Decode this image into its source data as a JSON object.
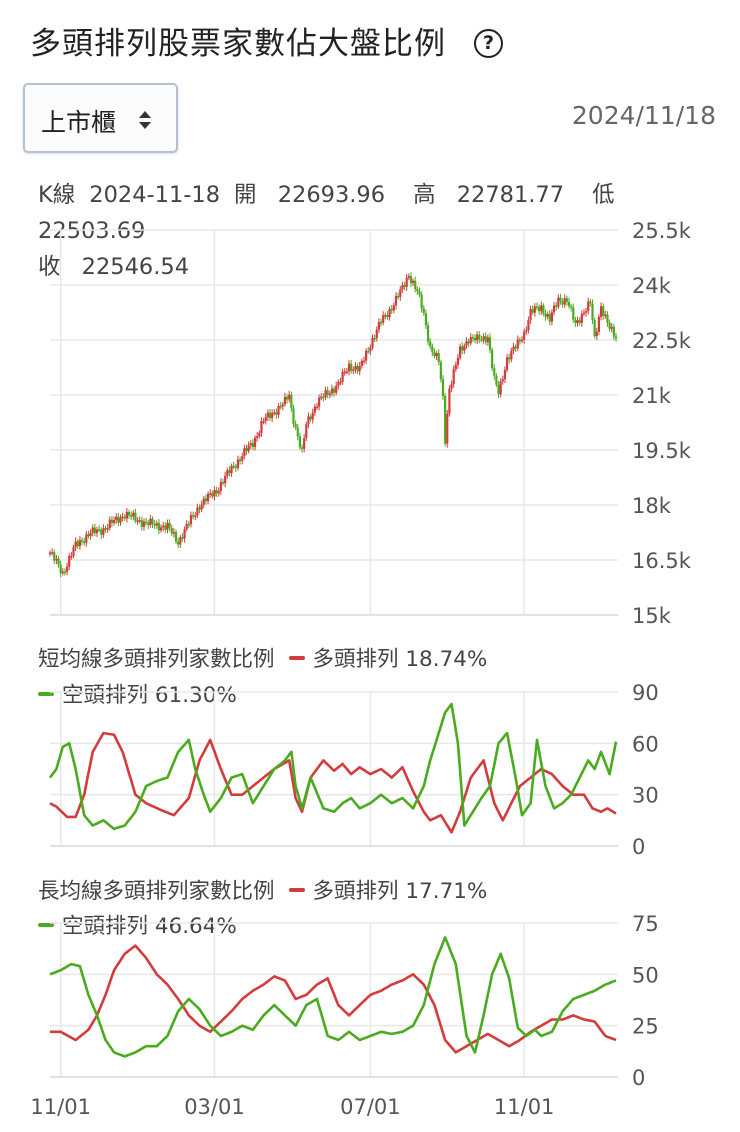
{
  "title": "多頭排列股票家數佔大盤比例",
  "help_icon": "question-circle-icon",
  "market_select": {
    "value": "上市櫃",
    "icon": "sort-arrows-icon"
  },
  "date": "2024/11/18",
  "kline_info": {
    "label": "K線",
    "date": "2024-11-18",
    "open_label": "開",
    "open": "22693.96",
    "high_label": "高",
    "high": "22781.77",
    "low_label": "低",
    "low": "22503.69",
    "close_label": "收",
    "close": "22546.54"
  },
  "colors": {
    "up": "#d43c3c",
    "down": "#4aab1f",
    "grid": "#e8e8e8"
  },
  "chart_data": [
    {
      "type": "candlestick",
      "name": "K線",
      "x_tick_labels": [
        "11/01",
        "03/01",
        "07/01",
        "11/01"
      ],
      "x_tick_positions": [
        5,
        77,
        150,
        222
      ],
      "y_tick_labels": [
        "25.5k",
        "24k",
        "22.5k",
        "21k",
        "19.5k",
        "18k",
        "16.5k",
        "15k"
      ],
      "ylim": [
        15000,
        25500
      ],
      "close_anchors": [
        [
          0,
          16700
        ],
        [
          6,
          16150
        ],
        [
          12,
          16900
        ],
        [
          18,
          17200
        ],
        [
          25,
          17350
        ],
        [
          35,
          17750
        ],
        [
          45,
          17500
        ],
        [
          55,
          17400
        ],
        [
          60,
          17000
        ],
        [
          70,
          18000
        ],
        [
          78,
          18400
        ],
        [
          85,
          19000
        ],
        [
          95,
          19700
        ],
        [
          100,
          20300
        ],
        [
          110,
          20800
        ],
        [
          112,
          21000
        ],
        [
          113,
          20600
        ],
        [
          118,
          19400
        ],
        [
          120,
          20200
        ],
        [
          125,
          20800
        ],
        [
          135,
          21300
        ],
        [
          140,
          21800
        ],
        [
          145,
          21700
        ],
        [
          150,
          22400
        ],
        [
          155,
          23000
        ],
        [
          160,
          23400
        ],
        [
          165,
          23900
        ],
        [
          168,
          24300
        ],
        [
          172,
          23800
        ],
        [
          175,
          23200
        ],
        [
          178,
          22300
        ],
        [
          182,
          21900
        ],
        [
          184,
          20900
        ],
        [
          185,
          19800
        ],
        [
          187,
          21200
        ],
        [
          192,
          22200
        ],
        [
          196,
          22550
        ],
        [
          200,
          22500
        ],
        [
          205,
          22600
        ],
        [
          208,
          21400
        ],
        [
          210,
          21050
        ],
        [
          214,
          22000
        ],
        [
          218,
          22300
        ],
        [
          222,
          22700
        ],
        [
          225,
          23250
        ],
        [
          230,
          23400
        ],
        [
          234,
          23050
        ],
        [
          238,
          23600
        ],
        [
          242,
          23600
        ],
        [
          246,
          22900
        ],
        [
          250,
          23300
        ],
        [
          253,
          23500
        ],
        [
          255,
          22500
        ],
        [
          258,
          23450
        ],
        [
          262,
          22800
        ],
        [
          265,
          22546
        ]
      ],
      "candle_count": 266
    },
    {
      "type": "line",
      "title": "短均線多頭排列家數比例",
      "series": [
        {
          "name": "多頭排列",
          "last": "18.74%",
          "anchors": [
            [
              0,
              25
            ],
            [
              3,
              23
            ],
            [
              8,
              17
            ],
            [
              12,
              17
            ],
            [
              16,
              30
            ],
            [
              20,
              55
            ],
            [
              25,
              66
            ],
            [
              30,
              65
            ],
            [
              34,
              55
            ],
            [
              40,
              30
            ],
            [
              45,
              25
            ],
            [
              52,
              21
            ],
            [
              58,
              18
            ],
            [
              65,
              28
            ],
            [
              70,
              50
            ],
            [
              75,
              62
            ],
            [
              80,
              45
            ],
            [
              85,
              30
            ],
            [
              90,
              30
            ],
            [
              95,
              35
            ],
            [
              100,
              40
            ],
            [
              105,
              45
            ],
            [
              112,
              50
            ],
            [
              115,
              28
            ],
            [
              118,
              20
            ],
            [
              122,
              40
            ],
            [
              128,
              50
            ],
            [
              133,
              44
            ],
            [
              137,
              48
            ],
            [
              141,
              42
            ],
            [
              145,
              46
            ],
            [
              150,
              42
            ],
            [
              155,
              45
            ],
            [
              160,
              40
            ],
            [
              165,
              46
            ],
            [
              170,
              32
            ],
            [
              175,
              20
            ],
            [
              178,
              15
            ],
            [
              183,
              18
            ],
            [
              188,
              8
            ],
            [
              192,
              20
            ],
            [
              197,
              40
            ],
            [
              203,
              50
            ],
            [
              208,
              25
            ],
            [
              212,
              15
            ],
            [
              216,
              25
            ],
            [
              220,
              35
            ],
            [
              225,
              40
            ],
            [
              230,
              45
            ],
            [
              235,
              42
            ],
            [
              240,
              35
            ],
            [
              245,
              30
            ],
            [
              250,
              30
            ],
            [
              254,
              22
            ],
            [
              258,
              20
            ],
            [
              261,
              22
            ],
            [
              265,
              19
            ]
          ]
        },
        {
          "name": "空頭排列",
          "last": "61.30%",
          "anchors": [
            [
              0,
              40
            ],
            [
              3,
              45
            ],
            [
              6,
              58
            ],
            [
              9,
              60
            ],
            [
              12,
              45
            ],
            [
              16,
              18
            ],
            [
              20,
              12
            ],
            [
              25,
              15
            ],
            [
              30,
              10
            ],
            [
              35,
              12
            ],
            [
              40,
              20
            ],
            [
              45,
              35
            ],
            [
              50,
              38
            ],
            [
              55,
              40
            ],
            [
              60,
              55
            ],
            [
              65,
              62
            ],
            [
              68,
              45
            ],
            [
              72,
              30
            ],
            [
              75,
              20
            ],
            [
              80,
              28
            ],
            [
              85,
              40
            ],
            [
              90,
              42
            ],
            [
              95,
              25
            ],
            [
              100,
              35
            ],
            [
              105,
              45
            ],
            [
              110,
              50
            ],
            [
              113,
              55
            ],
            [
              115,
              35
            ],
            [
              118,
              22
            ],
            [
              122,
              40
            ],
            [
              128,
              22
            ],
            [
              133,
              20
            ],
            [
              137,
              25
            ],
            [
              141,
              28
            ],
            [
              145,
              22
            ],
            [
              150,
              25
            ],
            [
              155,
              30
            ],
            [
              160,
              25
            ],
            [
              165,
              28
            ],
            [
              170,
              22
            ],
            [
              175,
              35
            ],
            [
              178,
              50
            ],
            [
              181,
              62
            ],
            [
              185,
              78
            ],
            [
              188,
              83
            ],
            [
              191,
              60
            ],
            [
              194,
              12
            ],
            [
              198,
              20
            ],
            [
              202,
              28
            ],
            [
              206,
              35
            ],
            [
              210,
              60
            ],
            [
              214,
              66
            ],
            [
              218,
              40
            ],
            [
              221,
              18
            ],
            [
              225,
              25
            ],
            [
              228,
              62
            ],
            [
              232,
              35
            ],
            [
              236,
              22
            ],
            [
              240,
              25
            ],
            [
              244,
              30
            ],
            [
              248,
              40
            ],
            [
              252,
              50
            ],
            [
              255,
              45
            ],
            [
              258,
              55
            ],
            [
              262,
              42
            ],
            [
              265,
              61
            ]
          ]
        }
      ],
      "y_tick_labels": [
        "90",
        "60",
        "30",
        "0"
      ],
      "ylim": [
        0,
        90
      ]
    },
    {
      "type": "line",
      "title": "長均線多頭排列家數比例",
      "series": [
        {
          "name": "多頭排列",
          "last": "17.71%",
          "anchors": [
            [
              0,
              22
            ],
            [
              5,
              22
            ],
            [
              12,
              18
            ],
            [
              18,
              23
            ],
            [
              22,
              30
            ],
            [
              26,
              40
            ],
            [
              30,
              52
            ],
            [
              35,
              60
            ],
            [
              40,
              64
            ],
            [
              45,
              58
            ],
            [
              50,
              50
            ],
            [
              55,
              45
            ],
            [
              60,
              38
            ],
            [
              65,
              30
            ],
            [
              70,
              25
            ],
            [
              75,
              22
            ],
            [
              80,
              27
            ],
            [
              85,
              32
            ],
            [
              90,
              38
            ],
            [
              95,
              42
            ],
            [
              100,
              45
            ],
            [
              105,
              49
            ],
            [
              110,
              47
            ],
            [
              115,
              38
            ],
            [
              120,
              40
            ],
            [
              125,
              45
            ],
            [
              130,
              48
            ],
            [
              135,
              35
            ],
            [
              140,
              30
            ],
            [
              145,
              35
            ],
            [
              150,
              40
            ],
            [
              155,
              42
            ],
            [
              160,
              45
            ],
            [
              165,
              47
            ],
            [
              170,
              50
            ],
            [
              175,
              45
            ],
            [
              180,
              35
            ],
            [
              185,
              18
            ],
            [
              190,
              12
            ],
            [
              195,
              15
            ],
            [
              200,
              18
            ],
            [
              205,
              21
            ],
            [
              210,
              18
            ],
            [
              215,
              15
            ],
            [
              220,
              18
            ],
            [
              225,
              22
            ],
            [
              230,
              25
            ],
            [
              235,
              28
            ],
            [
              240,
              28
            ],
            [
              245,
              30
            ],
            [
              250,
              28
            ],
            [
              255,
              27
            ],
            [
              260,
              20
            ],
            [
              265,
              18
            ]
          ]
        },
        {
          "name": "空頭排列",
          "last": "46.64%",
          "anchors": [
            [
              0,
              50
            ],
            [
              5,
              52
            ],
            [
              10,
              55
            ],
            [
              14,
              54
            ],
            [
              18,
              40
            ],
            [
              22,
              30
            ],
            [
              26,
              18
            ],
            [
              30,
              12
            ],
            [
              35,
              10
            ],
            [
              40,
              12
            ],
            [
              45,
              15
            ],
            [
              50,
              15
            ],
            [
              55,
              20
            ],
            [
              60,
              32
            ],
            [
              65,
              38
            ],
            [
              70,
              33
            ],
            [
              75,
              25
            ],
            [
              80,
              20
            ],
            [
              85,
              22
            ],
            [
              90,
              25
            ],
            [
              95,
              23
            ],
            [
              100,
              30
            ],
            [
              105,
              35
            ],
            [
              110,
              30
            ],
            [
              115,
              25
            ],
            [
              120,
              35
            ],
            [
              125,
              38
            ],
            [
              130,
              20
            ],
            [
              135,
              18
            ],
            [
              140,
              22
            ],
            [
              145,
              18
            ],
            [
              150,
              20
            ],
            [
              155,
              22
            ],
            [
              160,
              21
            ],
            [
              165,
              22
            ],
            [
              170,
              25
            ],
            [
              175,
              35
            ],
            [
              180,
              55
            ],
            [
              185,
              68
            ],
            [
              190,
              55
            ],
            [
              195,
              20
            ],
            [
              199,
              12
            ],
            [
              203,
              30
            ],
            [
              207,
              50
            ],
            [
              211,
              60
            ],
            [
              215,
              48
            ],
            [
              219,
              24
            ],
            [
              223,
              20
            ],
            [
              227,
              23
            ],
            [
              230,
              20
            ],
            [
              235,
              22
            ],
            [
              240,
              32
            ],
            [
              245,
              38
            ],
            [
              250,
              40
            ],
            [
              255,
              42
            ],
            [
              260,
              45
            ],
            [
              265,
              47
            ]
          ]
        }
      ],
      "y_tick_labels": [
        "75",
        "50",
        "25",
        "0"
      ],
      "ylim": [
        0,
        75
      ]
    }
  ]
}
